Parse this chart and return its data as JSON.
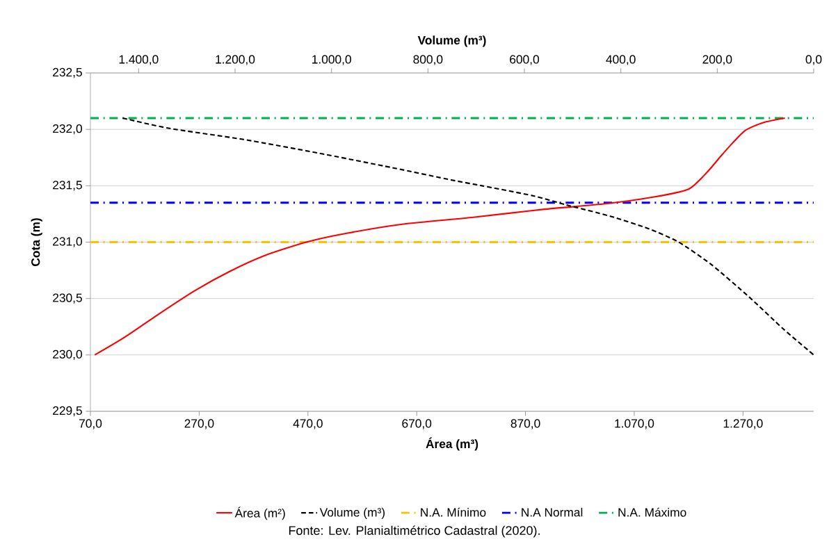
{
  "chart_data": {
    "type": "line",
    "x2label": "Volume (m³)",
    "xlabel": "Área (m³)",
    "ylabel": "Cota (m)",
    "xlim": [
      70,
      1400
    ],
    "xticks": [
      {
        "value": 70,
        "label": "70,0"
      },
      {
        "value": 270,
        "label": "270,0"
      },
      {
        "value": 470,
        "label": "470,0"
      },
      {
        "value": 670,
        "label": "670,0"
      },
      {
        "value": 870,
        "label": "870,0"
      },
      {
        "value": 1070,
        "label": "1.070,0"
      },
      {
        "value": 1270,
        "label": "1.270,0"
      }
    ],
    "x2lim": [
      1500,
      0
    ],
    "x2ticks": [
      {
        "value": 1400,
        "label": "1.400,0"
      },
      {
        "value": 1200,
        "label": "1.200,0"
      },
      {
        "value": 1000,
        "label": "1.000,0"
      },
      {
        "value": 800,
        "label": "800,0"
      },
      {
        "value": 600,
        "label": "600,0"
      },
      {
        "value": 400,
        "label": "400,0"
      },
      {
        "value": 200,
        "label": "200,0"
      },
      {
        "value": 0,
        "label": "0,0"
      }
    ],
    "ylim": [
      229.5,
      232.5
    ],
    "yticks": [
      {
        "value": 229.5,
        "label": "229,5"
      },
      {
        "value": 230,
        "label": "230,0"
      },
      {
        "value": 230.5,
        "label": "230,5"
      },
      {
        "value": 231,
        "label": "231,0"
      },
      {
        "value": 231.5,
        "label": "231,5"
      },
      {
        "value": 232,
        "label": "232,0"
      },
      {
        "value": 232.5,
        "label": "232,5"
      }
    ],
    "grid": "y",
    "legend": "bottom",
    "series": [
      {
        "name": "Área (m²)",
        "color": "#ff0000",
        "line_style": "solid",
        "x": [
          78,
          134,
          198,
          262,
          326,
          390,
          467,
          543,
          646,
          774,
          902,
          1017,
          1106,
          1170,
          1204,
          1227,
          1251,
          1274,
          1307,
          1347
        ],
        "values": [
          230.0,
          230.16,
          230.37,
          230.57,
          230.74,
          230.88,
          231.0,
          231.08,
          231.16,
          231.22,
          231.29,
          231.34,
          231.4,
          231.47,
          231.62,
          231.75,
          231.88,
          231.99,
          232.06,
          232.1
        ]
      },
      {
        "name": "Volume (m³)",
        "color": "#000000",
        "line_style": "dashed",
        "axis": "x2",
        "x": [
          1433,
          1338,
          1182,
          1028,
          874,
          750,
          688,
          581,
          513,
          422,
          343,
          280,
          212,
          133,
          63,
          0
        ],
        "values": [
          232.1,
          232.01,
          231.91,
          231.79,
          231.66,
          231.55,
          231.5,
          231.41,
          231.33,
          231.23,
          231.12,
          231.0,
          230.8,
          230.51,
          230.23,
          230.0
        ]
      }
    ],
    "ref_lines": [
      {
        "axis": "y",
        "value": 231.0,
        "label": "N.A. Mínimo",
        "color": "#ffc000",
        "line_style": "dashdot"
      },
      {
        "axis": "y",
        "value": 231.35,
        "label": "N.A Normal",
        "color": "#0000ff",
        "line_style": "dashdot"
      },
      {
        "axis": "y",
        "value": 232.1,
        "label": "N.A. Máximo",
        "color": "#00b050",
        "line_style": "dashdot"
      }
    ],
    "annotations": [
      "Fonte: Lev. Planialtimétrico Cadastral (2020)."
    ]
  }
}
